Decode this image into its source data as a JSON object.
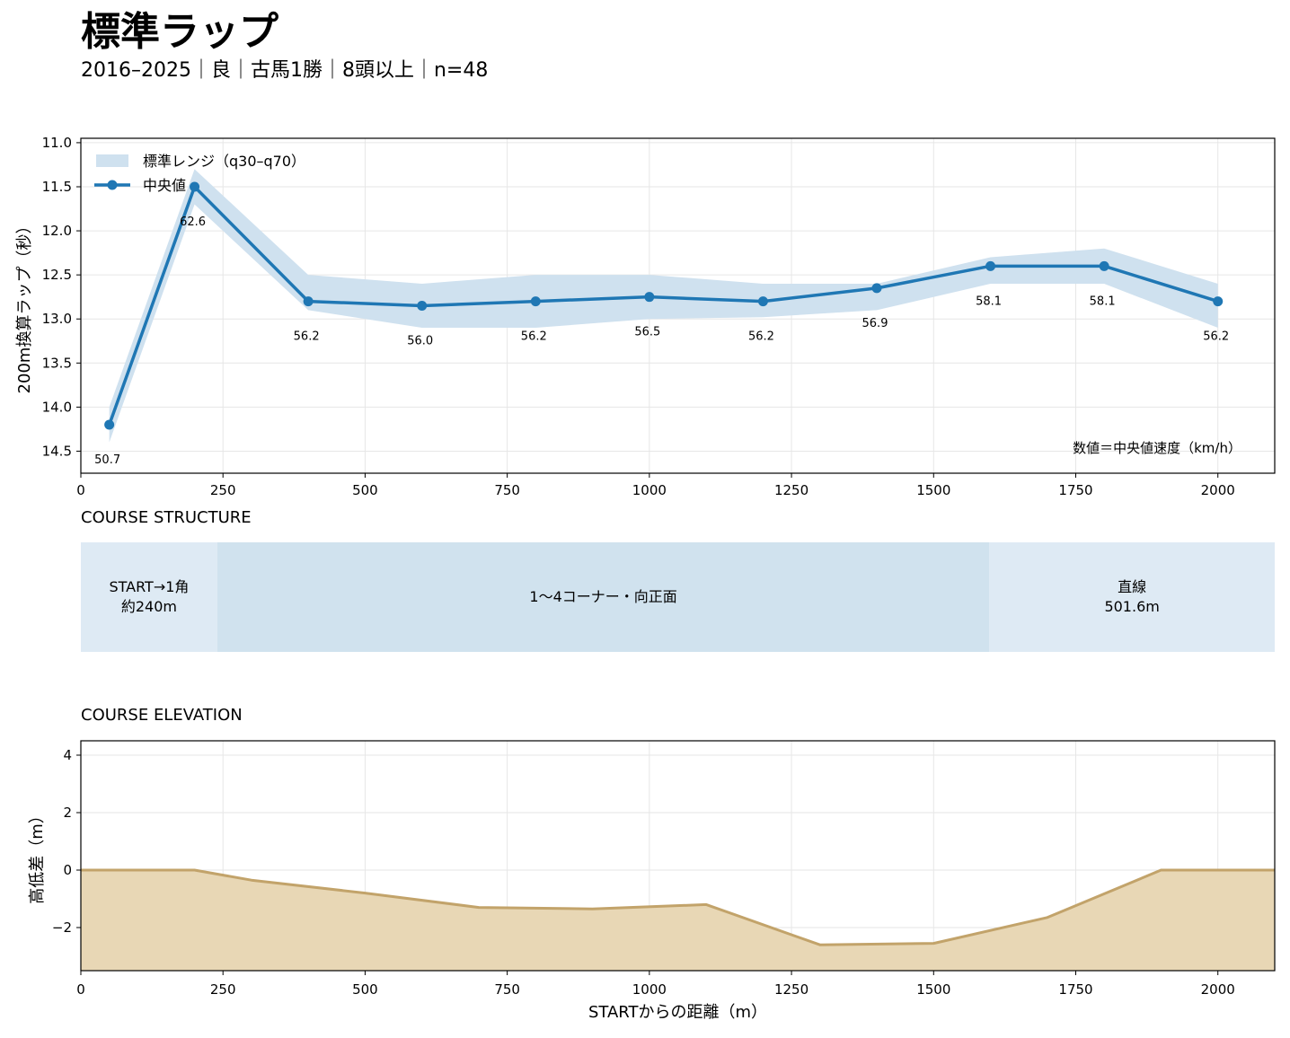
{
  "header": {
    "title": "標準ラップ",
    "subtitle": "2016–2025｜良｜古馬1勝｜8頭以上｜n=48"
  },
  "chart_data": [
    {
      "type": "line",
      "ylabel": "200m換算ラップ（秒）",
      "xlim": [
        0,
        2100
      ],
      "ylim": [
        14.75,
        10.95
      ],
      "y_inverted": true,
      "x_ticks": [
        0,
        250,
        500,
        750,
        1000,
        1250,
        1500,
        1750,
        2000
      ],
      "y_ticks": [
        11.0,
        11.5,
        12.0,
        12.5,
        13.0,
        13.5,
        14.0,
        14.5
      ],
      "grid": true,
      "legend": "top-left",
      "legend_entries": {
        "band": "標準レンジ（q30–q70）",
        "median": "中央値"
      },
      "annotation": "数値＝中央値速度（km/h）",
      "colors": {
        "line": "#1f77b4",
        "band": "#cfe1ef"
      },
      "x": [
        50,
        200,
        400,
        600,
        800,
        1000,
        1200,
        1400,
        1600,
        1800,
        2000
      ],
      "median": [
        14.2,
        11.5,
        12.8,
        12.85,
        12.8,
        12.75,
        12.8,
        12.65,
        12.4,
        12.4,
        12.8
      ],
      "q30": [
        14.0,
        11.3,
        12.5,
        12.6,
        12.5,
        12.5,
        12.6,
        12.6,
        12.3,
        12.2,
        12.6
      ],
      "q70": [
        14.4,
        11.7,
        12.9,
        13.1,
        13.1,
        13.0,
        12.98,
        12.9,
        12.6,
        12.6,
        13.1
      ],
      "speed_labels": [
        "50.7",
        "62.6",
        "56.2",
        "56.0",
        "56.2",
        "56.5",
        "56.2",
        "56.9",
        "58.1",
        "58.1",
        "56.2"
      ]
    },
    {
      "type": "table",
      "title": "COURSE STRUCTURE",
      "segments": [
        {
          "label": "START→1角\n約240m",
          "from": 0,
          "to": 240,
          "color": "#deeaf4"
        },
        {
          "label": "1〜4コーナー・向正面",
          "from": 240,
          "to": 1598,
          "color": "#d0e2ee"
        },
        {
          "label": "直線\n501.6m",
          "from": 1598,
          "to": 2100,
          "color": "#deeaf4"
        }
      ]
    },
    {
      "type": "area",
      "title": "COURSE ELEVATION",
      "xlabel": "STARTからの距離（m）",
      "ylabel": "高低差（m）",
      "xlim": [
        0,
        2100
      ],
      "ylim": [
        -3.5,
        4.5
      ],
      "x_ticks": [
        0,
        250,
        500,
        750,
        1000,
        1250,
        1500,
        1750,
        2000
      ],
      "y_ticks": [
        -2,
        0,
        2,
        4
      ],
      "grid": true,
      "colors": {
        "line": "#c2a36a",
        "fill": "#e8d7b5"
      },
      "x": [
        0,
        200,
        300,
        500,
        700,
        900,
        1100,
        1300,
        1500,
        1700,
        1900,
        2100
      ],
      "y": [
        0,
        0,
        -0.35,
        -0.8,
        -1.3,
        -1.35,
        -1.2,
        -2.6,
        -2.55,
        -1.65,
        0,
        0
      ]
    }
  ]
}
